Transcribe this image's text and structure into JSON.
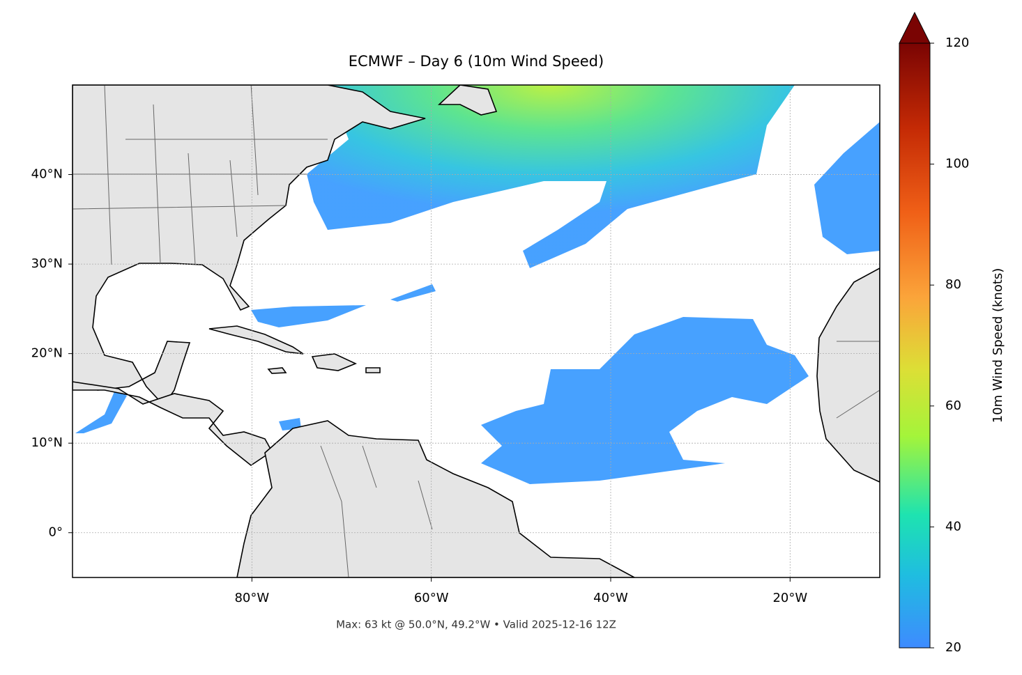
{
  "title": "ECMWF – Day 6 (10m Wind Speed)",
  "map": {
    "lonlim": [
      -100,
      -10
    ],
    "latlim": [
      -5,
      50
    ],
    "lon_ticks": [
      {
        "value": -80,
        "label": "80°W"
      },
      {
        "value": -60,
        "label": "60°W"
      },
      {
        "value": -40,
        "label": "40°W"
      },
      {
        "value": -20,
        "label": "20°W"
      }
    ],
    "lat_ticks": [
      {
        "value": 0,
        "label": "0°"
      },
      {
        "value": 10,
        "label": "10°N"
      },
      {
        "value": 20,
        "label": "20°N"
      },
      {
        "value": 30,
        "label": "30°N"
      },
      {
        "value": 40,
        "label": "40°N"
      }
    ],
    "grid": true
  },
  "colorbar": {
    "label": "10m Wind Speed (knots)",
    "lim": [
      20,
      120
    ],
    "ticks": [
      20,
      40,
      60,
      80,
      100,
      120
    ]
  },
  "footer": "Max: 63 kt @ 50.0°N, 49.2°W • Valid 2025-12-16 12Z"
}
